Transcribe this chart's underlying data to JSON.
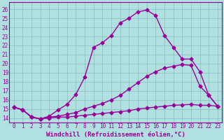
{
  "xlabel": "Windchill (Refroidissement éolien,°C)",
  "line_color": "#990099",
  "bg_color": "#b0e0e0",
  "grid_color": "#88bbbb",
  "xlim": [
    -0.5,
    23.5
  ],
  "ylim": [
    13.5,
    26.8
  ],
  "xticks": [
    0,
    1,
    2,
    3,
    4,
    5,
    6,
    7,
    8,
    9,
    10,
    11,
    12,
    13,
    14,
    15,
    16,
    17,
    18,
    19,
    20,
    21,
    22,
    23
  ],
  "yticks": [
    14,
    15,
    16,
    17,
    18,
    19,
    20,
    21,
    22,
    23,
    24,
    25,
    26
  ],
  "curve1_x": [
    0,
    1,
    2,
    3,
    4,
    5,
    6,
    7,
    8,
    9,
    10,
    11,
    12,
    13,
    14,
    15,
    16,
    17,
    18,
    19,
    20,
    21,
    22,
    23
  ],
  "curve1_y": [
    15.2,
    14.9,
    14.1,
    13.9,
    14.2,
    14.9,
    15.5,
    16.6,
    18.5,
    21.8,
    22.3,
    23.1,
    24.5,
    25.0,
    25.7,
    25.9,
    25.3,
    23.1,
    21.8,
    20.5,
    20.5,
    19.1,
    16.5,
    15.3
  ],
  "curve2_x": [
    0,
    1,
    2,
    3,
    4,
    5,
    6,
    7,
    8,
    9,
    10,
    11,
    12,
    13,
    14,
    15,
    16,
    17,
    18,
    19,
    20,
    21,
    22,
    23
  ],
  "curve2_y": [
    15.2,
    14.9,
    14.1,
    13.9,
    14.1,
    14.2,
    14.4,
    14.6,
    15.0,
    15.3,
    15.6,
    16.0,
    16.5,
    17.2,
    17.9,
    18.6,
    19.1,
    19.5,
    19.7,
    19.9,
    19.8,
    17.5,
    16.5,
    15.3
  ],
  "curve3_x": [
    0,
    1,
    2,
    3,
    4,
    5,
    6,
    7,
    8,
    9,
    10,
    11,
    12,
    13,
    14,
    15,
    16,
    17,
    18,
    19,
    20,
    21,
    22,
    23
  ],
  "curve3_y": [
    15.2,
    14.9,
    14.1,
    13.9,
    14.0,
    14.1,
    14.1,
    14.2,
    14.3,
    14.4,
    14.5,
    14.6,
    14.7,
    14.8,
    15.0,
    15.1,
    15.2,
    15.3,
    15.4,
    15.45,
    15.5,
    15.4,
    15.4,
    15.3
  ],
  "marker": "D",
  "marker_size": 2.5,
  "linewidth": 1.0,
  "xlabel_fontsize": 6.5,
  "tick_fontsize": 5.5,
  "xlabel_fontweight": "bold"
}
